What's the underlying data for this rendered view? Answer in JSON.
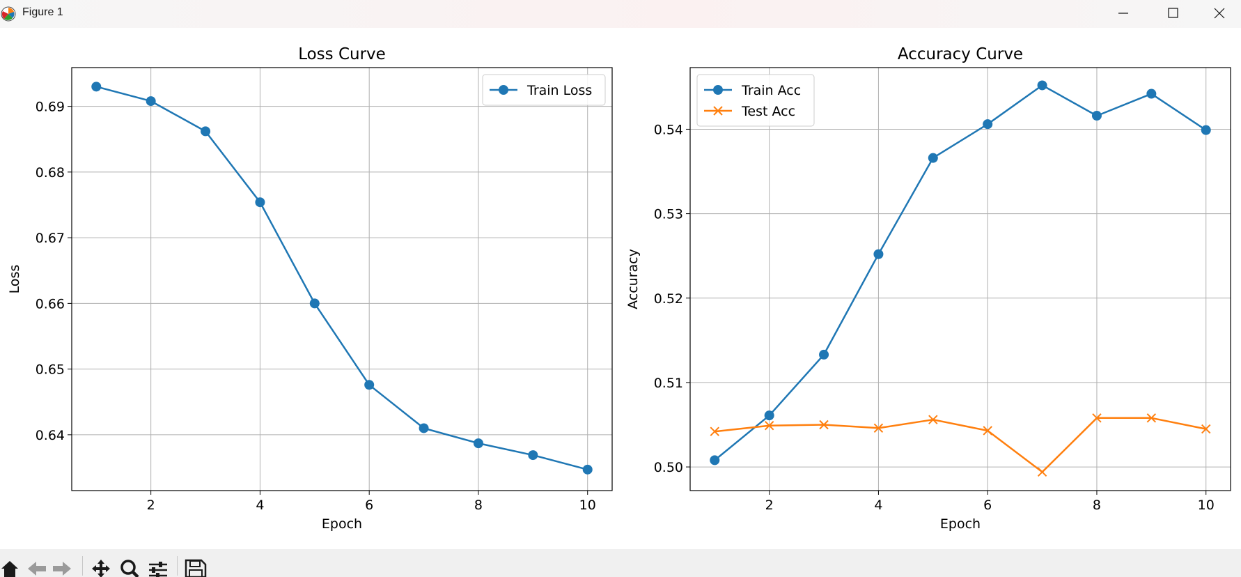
{
  "window": {
    "title": "Figure 1",
    "icon": "matplotlib-logo-icon"
  },
  "toolbar": {
    "tools": [
      "home-icon",
      "back-arrow-icon",
      "forward-arrow-icon",
      "pan-icon",
      "zoom-icon",
      "subplots-config-icon",
      "save-icon"
    ]
  },
  "colors": {
    "train": "#1f77b4",
    "test": "#ff7f0e",
    "grid": "#b0b0b0",
    "axis": "#000000"
  },
  "chart_data": [
    {
      "type": "line",
      "title": "Loss Curve",
      "xlabel": "Epoch",
      "ylabel": "Loss",
      "xlim": [
        0.55,
        10.45
      ],
      "ylim": [
        0.6315,
        0.6959
      ],
      "xticks": [
        2,
        4,
        6,
        8,
        10
      ],
      "yticks": [
        0.64,
        0.65,
        0.66,
        0.67,
        0.68,
        0.69
      ],
      "ytick_labels": [
        "0.64",
        "0.65",
        "0.66",
        "0.67",
        "0.68",
        "0.69"
      ],
      "grid": true,
      "legend": "upper right",
      "x": [
        1,
        2,
        3,
        4,
        5,
        6,
        7,
        8,
        9,
        10
      ],
      "series": [
        {
          "name": "Train Loss",
          "color": "#1f77b4",
          "marker": "circle",
          "values": [
            0.693,
            0.6908,
            0.6862,
            0.6754,
            0.66,
            0.6476,
            0.641,
            0.6387,
            0.6369,
            0.6347
          ]
        }
      ]
    },
    {
      "type": "line",
      "title": "Accuracy Curve",
      "xlabel": "Epoch",
      "ylabel": "Accuracy",
      "xlim": [
        0.55,
        10.45
      ],
      "ylim": [
        0.4972,
        0.5473
      ],
      "xticks": [
        2,
        4,
        6,
        8,
        10
      ],
      "yticks": [
        0.5,
        0.51,
        0.52,
        0.53,
        0.54
      ],
      "ytick_labels": [
        "0.50",
        "0.51",
        "0.52",
        "0.53",
        "0.54"
      ],
      "grid": true,
      "legend": "upper left",
      "x": [
        1,
        2,
        3,
        4,
        5,
        6,
        7,
        8,
        9,
        10
      ],
      "series": [
        {
          "name": "Train Acc",
          "color": "#1f77b4",
          "marker": "circle",
          "values": [
            0.5008,
            0.5061,
            0.5133,
            0.5252,
            0.5366,
            0.5406,
            0.5452,
            0.5416,
            0.5442,
            0.5399
          ]
        },
        {
          "name": "Test Acc",
          "color": "#ff7f0e",
          "marker": "x",
          "values": [
            0.5042,
            0.5049,
            0.505,
            0.5046,
            0.5056,
            0.5043,
            0.4994,
            0.5058,
            0.5058,
            0.5045
          ]
        }
      ]
    }
  ]
}
